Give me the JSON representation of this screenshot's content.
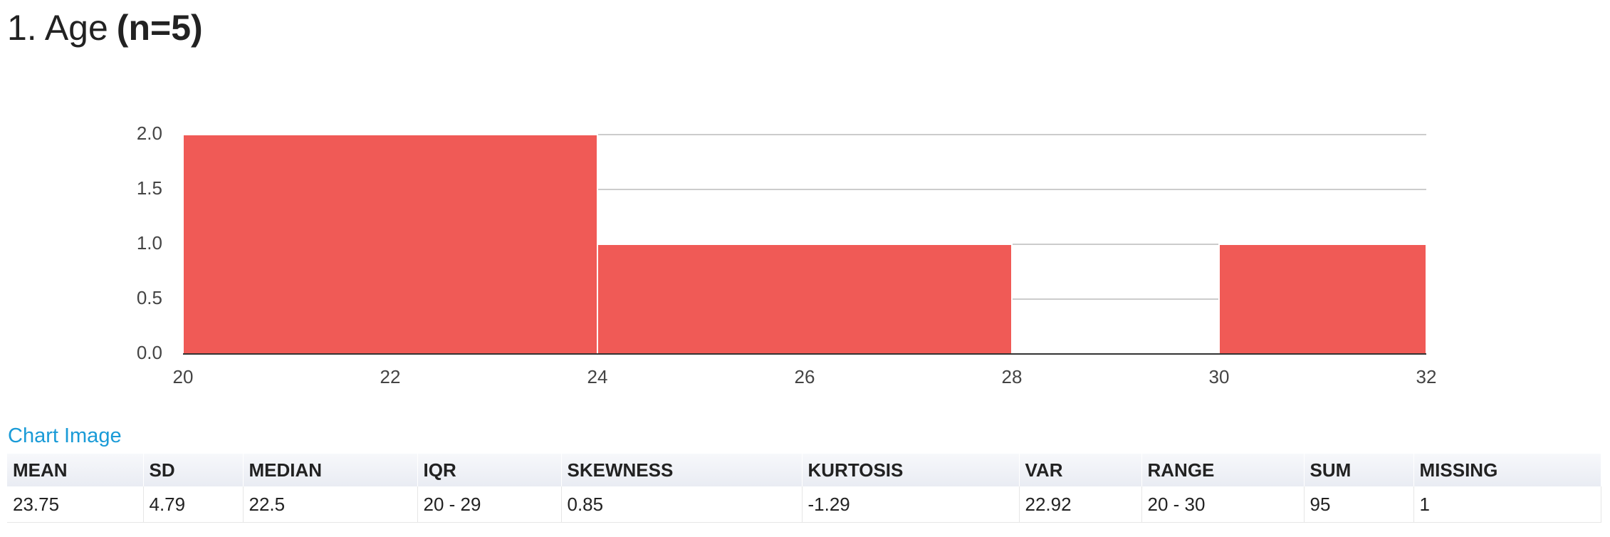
{
  "title": "1. Age",
  "title_n": "(n=5)",
  "chart_data": {
    "type": "histogram",
    "bins": [
      20,
      24,
      28,
      30,
      32
    ],
    "values": [
      2,
      1,
      0,
      1
    ],
    "color": "#f05a56",
    "xlim": [
      20,
      32
    ],
    "xticks": [
      20,
      22,
      24,
      26,
      28,
      30,
      32
    ],
    "ylim": [
      0,
      2
    ],
    "yticks": [
      {
        "value": 0,
        "label": "0.0"
      },
      0.5,
      {
        "value": 1,
        "label": "1.0"
      },
      1.5,
      {
        "value": 2,
        "label": "2.0"
      }
    ],
    "grid": true
  },
  "link": "Chart Image",
  "table": {
    "headers": [
      "MEAN",
      "SD",
      "MEDIAN",
      "IQR",
      "SKEWNESS",
      "KURTOSIS",
      "VAR",
      "RANGE",
      "SUM",
      "MISSING"
    ],
    "rows": [
      [
        23.75,
        4.79,
        22.5,
        "20 - 29",
        0.85,
        -1.29,
        22.92,
        "20 - 30",
        95,
        1
      ]
    ]
  }
}
